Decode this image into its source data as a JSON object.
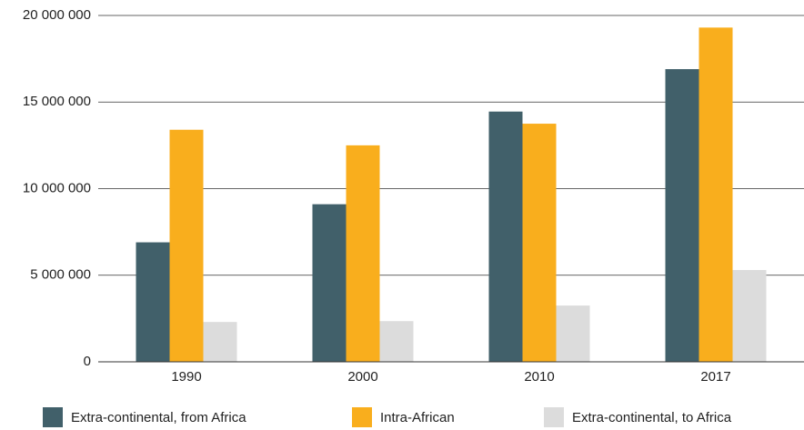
{
  "chart_data": {
    "type": "bar",
    "categories": [
      "1990",
      "2000",
      "2010",
      "2017"
    ],
    "series": [
      {
        "name": "Extra-continental, from Africa",
        "color": "#41606a",
        "values": [
          6900000,
          9100000,
          14450000,
          16900000
        ]
      },
      {
        "name": "Intra-African",
        "color": "#f9ae1d",
        "values": [
          13400000,
          12500000,
          13750000,
          19300000
        ]
      },
      {
        "name": "Extra-continental, to Africa",
        "color": "#dcdcdc",
        "values": [
          2300000,
          2350000,
          3250000,
          5300000
        ]
      }
    ],
    "ylim": [
      0,
      20000000
    ],
    "yticks": [
      0,
      {
        "value": 5000000,
        "label": "5 000 000"
      },
      {
        "value": 10000000,
        "label": "10 000 000"
      },
      {
        "value": 15000000,
        "label": "15 000 000"
      },
      {
        "value": 20000000,
        "label": "20 000 000"
      }
    ],
    "grid": true,
    "legend": "bottom"
  }
}
